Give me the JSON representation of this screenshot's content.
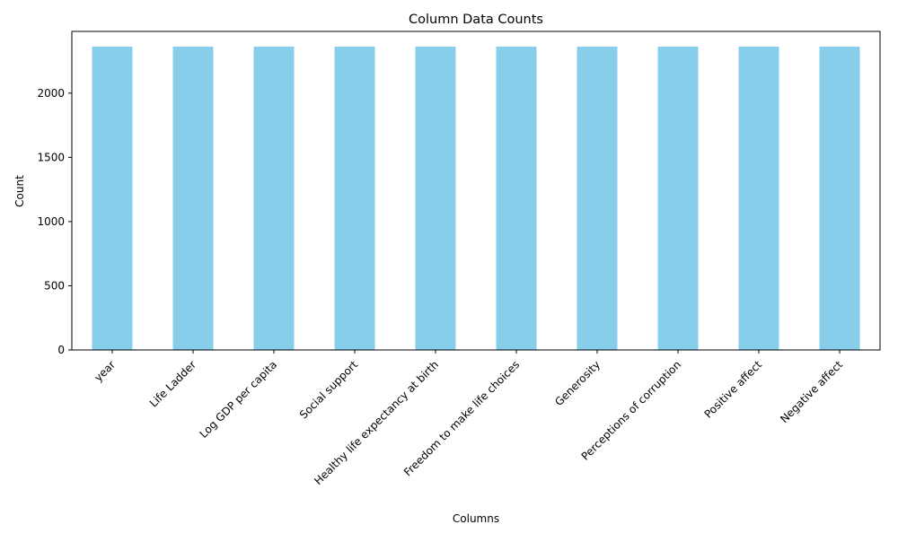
{
  "chart_data": {
    "type": "bar",
    "title": "Column Data Counts",
    "xlabel": "Columns",
    "ylabel": "Count",
    "categories": [
      "year",
      "Life Ladder",
      "Log GDP per capita",
      "Social support",
      "Healthy life expectancy at birth",
      "Freedom to make life choices",
      "Generosity",
      "Perceptions of corruption",
      "Positive affect",
      "Negative affect"
    ],
    "values": [
      2363,
      2363,
      2363,
      2363,
      2363,
      2363,
      2363,
      2363,
      2363,
      2363
    ],
    "ylim": [
      0,
      2481
    ],
    "yticks": [
      0,
      500,
      1000,
      1500,
      2000
    ],
    "grid": false,
    "legend": "none",
    "bar_color": "#87CEEB",
    "xtick_rotation": 45
  }
}
